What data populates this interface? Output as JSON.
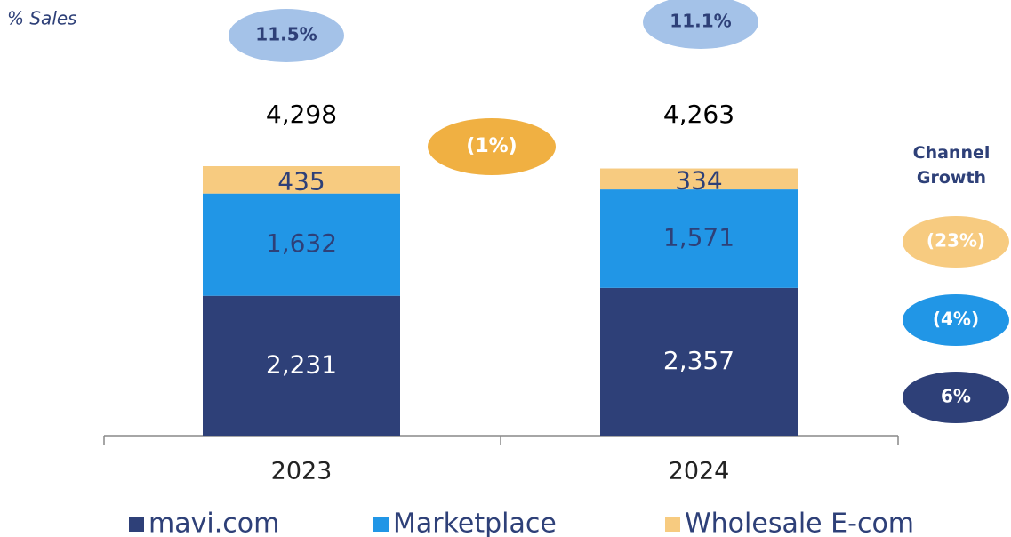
{
  "chart_data": {
    "type": "stacked_bar",
    "subtitle": "% Sales",
    "categories": [
      "2023",
      "2024"
    ],
    "series": [
      {
        "name": "mavi.com",
        "color": "#2e4078",
        "values": [
          2231,
          2357
        ],
        "value_labels": [
          "2,231",
          "2,357"
        ]
      },
      {
        "name": "Marketplace",
        "color": "#2196e6",
        "values": [
          1632,
          1571
        ],
        "value_labels": [
          "1,632",
          "1,571"
        ]
      },
      {
        "name": "Wholesale E-com",
        "color": "#f7cb80",
        "values": [
          435,
          334
        ],
        "value_labels": [
          "435",
          "334"
        ]
      }
    ],
    "total_labels": [
      "4,298",
      "4,263"
    ],
    "sales_pct": [
      "11.5%",
      "11.1%"
    ],
    "total_growth": "(1%)",
    "total_growth_color": "#f0b042",
    "sales_pct_color": "#a4c2e8",
    "channel_growth": {
      "title": "Channel Growth",
      "values": [
        "6%",
        "(4%)",
        "(23%)"
      ]
    }
  }
}
